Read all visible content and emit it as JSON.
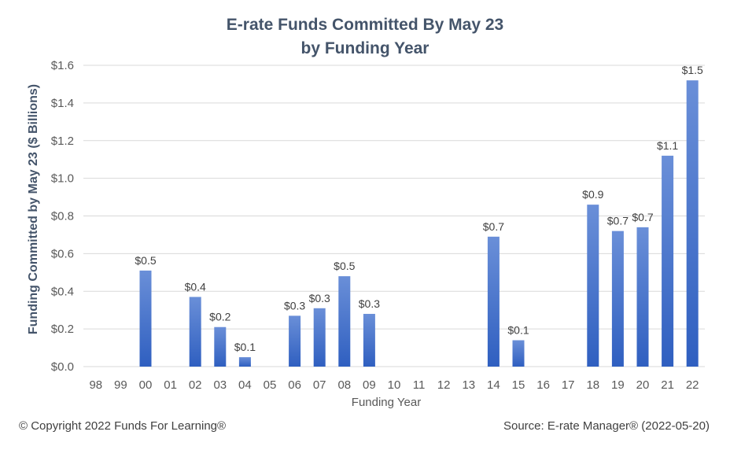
{
  "chart_data": {
    "type": "bar",
    "title_line1": "E-rate Funds Committed By May 23",
    "title_line2": "by Funding Year",
    "xlabel": "Funding Year",
    "ylabel": "Funding Committed by May 23 ($ Billions)",
    "ylim": [
      0,
      1.6
    ],
    "yticks": [
      0,
      0.2,
      0.4,
      0.6,
      0.8,
      1.0,
      1.2,
      1.4,
      1.6
    ],
    "ytick_labels": [
      "$0.0",
      "$0.2",
      "$0.4",
      "$0.6",
      "$0.8",
      "$1.0",
      "$1.2",
      "$1.4",
      "$1.6"
    ],
    "grid": true,
    "legend": "none",
    "bar_color": "#4472c4",
    "categories": [
      "98",
      "99",
      "00",
      "01",
      "02",
      "03",
      "04",
      "05",
      "06",
      "07",
      "08",
      "09",
      "10",
      "11",
      "12",
      "13",
      "14",
      "15",
      "16",
      "17",
      "18",
      "19",
      "20",
      "21",
      "22"
    ],
    "values": [
      0,
      0,
      0.51,
      0,
      0.37,
      0.21,
      0.05,
      0,
      0.27,
      0.31,
      0.48,
      0.28,
      0,
      0,
      0,
      0,
      0.69,
      0.14,
      0,
      0,
      0.86,
      0.72,
      0.74,
      1.12,
      1.52
    ],
    "data_labels": [
      "",
      "",
      "$0.5",
      "",
      "$0.4",
      "$0.2",
      "$0.1",
      "",
      "$0.3",
      "$0.3",
      "$0.5",
      "$0.3",
      "",
      "",
      "",
      "",
      "$0.7",
      "$0.1",
      "",
      "",
      "$0.9",
      "$0.7",
      "$0.7",
      "$1.1",
      "$1.5"
    ]
  },
  "footer": {
    "copyright": "© Copyright 2022 Funds For Learning®",
    "source": "Source: E-rate Manager® (2022-05-20)"
  }
}
